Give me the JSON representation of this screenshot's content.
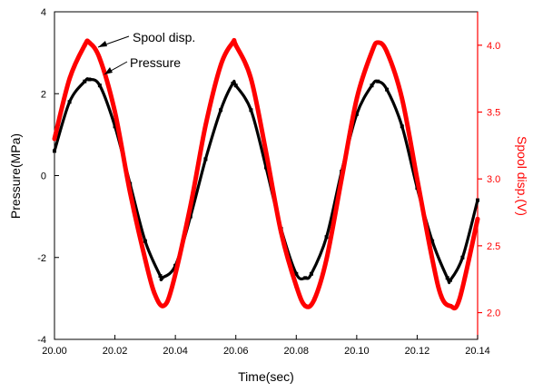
{
  "chart_data": {
    "type": "line",
    "xlabel": "Time(sec)",
    "ylabel_left": "Pressure(MPa)",
    "ylabel_right": "Spool disp.(V)",
    "xlim": [
      20.0,
      20.14
    ],
    "ylim_left": [
      -4,
      4
    ],
    "ylim_right": [
      1.8,
      4.25
    ],
    "x_ticks": [
      "20.00",
      "20.02",
      "20.04",
      "20.06",
      "20.08",
      "20.10",
      "20.12",
      "20.14"
    ],
    "y_left_ticks": [
      "-4",
      "-2",
      "0",
      "2",
      "4"
    ],
    "y_right_ticks": [
      "2.0",
      "2.5",
      "3.0",
      "3.5",
      "4.0"
    ],
    "annotations": [
      "Spool disp.",
      "Pressure"
    ],
    "colors": {
      "pressure": "#000000",
      "spool": "#ff0000",
      "right_axis": "#ff0000"
    },
    "grid": false,
    "series": [
      {
        "axis": "left",
        "x": [
          20.0,
          20.005,
          20.01,
          20.0115,
          20.015,
          20.02,
          20.025,
          20.03,
          20.035,
          20.0355,
          20.04,
          20.045,
          20.05,
          20.055,
          20.059,
          20.06,
          20.065,
          20.07,
          20.075,
          20.08,
          20.083,
          20.085,
          20.09,
          20.095,
          20.1,
          20.105,
          20.107,
          20.11,
          20.115,
          20.12,
          20.125,
          20.13,
          20.131,
          20.135,
          20.14
        ],
        "y": [
          0.6,
          1.8,
          2.3,
          2.35,
          2.2,
          1.2,
          -0.2,
          -1.6,
          -2.45,
          -2.5,
          -2.2,
          -1.0,
          0.4,
          1.6,
          2.25,
          2.2,
          1.6,
          0.2,
          -1.3,
          -2.4,
          -2.5,
          -2.4,
          -1.5,
          0.1,
          1.5,
          2.2,
          2.3,
          2.1,
          1.2,
          -0.3,
          -1.6,
          -2.5,
          -2.55,
          -2.0,
          -0.6
        ]
      },
      {
        "axis": "right",
        "x": [
          20.0,
          20.005,
          20.01,
          20.0115,
          20.015,
          20.02,
          20.025,
          20.03,
          20.033,
          20.036,
          20.039,
          20.045,
          20.05,
          20.055,
          20.059,
          20.06,
          20.065,
          20.07,
          20.075,
          20.08,
          20.083,
          20.086,
          20.09,
          20.095,
          20.1,
          20.105,
          20.107,
          20.11,
          20.115,
          20.12,
          20.125,
          20.128,
          20.131,
          20.134,
          20.14
        ],
        "y": [
          3.3,
          3.75,
          4.0,
          4.02,
          3.9,
          3.5,
          2.9,
          2.4,
          2.15,
          2.05,
          2.2,
          2.8,
          3.4,
          3.85,
          4.02,
          4.0,
          3.75,
          3.2,
          2.6,
          2.2,
          2.05,
          2.1,
          2.4,
          3.0,
          3.6,
          3.95,
          4.02,
          3.95,
          3.6,
          3.0,
          2.4,
          2.12,
          2.05,
          2.1,
          2.7
        ]
      }
    ]
  }
}
